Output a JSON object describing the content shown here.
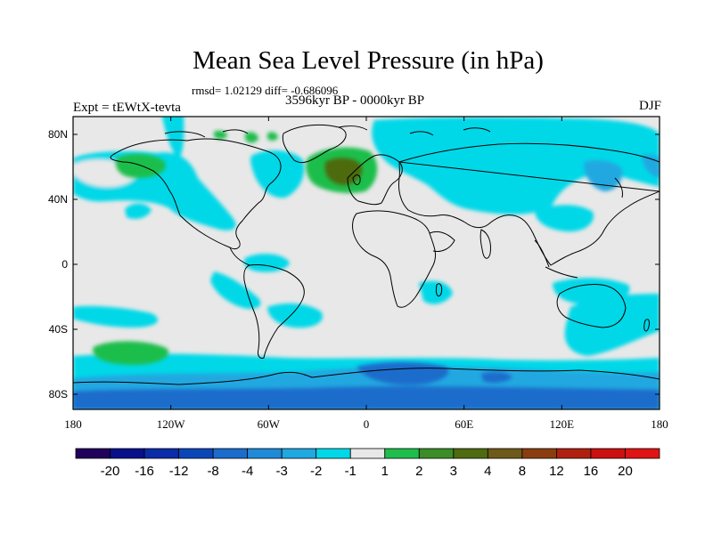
{
  "header": {
    "title": "Mean Sea Level Pressure (in hPa)",
    "stats": "rmsd= 1.02129 diff= -0.686096",
    "period": "3596kyr BP - 0000kyr BP",
    "experiment": "Expt = tEWtX-tevta",
    "season": "DJF"
  },
  "axes": {
    "lat_ticks": [
      "80N",
      "40N",
      "0",
      "40S",
      "80S"
    ],
    "lon_ticks": [
      "180",
      "120W",
      "60W",
      "0",
      "60E",
      "120E",
      "180"
    ]
  },
  "colorbar": {
    "labels": [
      "-20",
      "-16",
      "-12",
      "-8",
      "-4",
      "-3",
      "-2",
      "-1",
      "1",
      "2",
      "3",
      "4",
      "8",
      "12",
      "16",
      "20"
    ],
    "colors": [
      "#20005a",
      "#08108a",
      "#0a2ca8",
      "#0a46b8",
      "#1b6ccc",
      "#1f8ad8",
      "#20a8e0",
      "#00d8e8",
      "#e8e8e8",
      "#1fbe4c",
      "#3c8c28",
      "#4e6b10",
      "#6e5a18",
      "#8a3e10",
      "#b02010",
      "#cc1010",
      "#e01414"
    ]
  },
  "map": {
    "background_color": "#e8e8e8",
    "negative_light_color": "#00d8e8",
    "negative_mid_color": "#20a8e0",
    "negative_dark_color": "#1b6ccc",
    "positive_light_color": "#1fbe4c",
    "positive_dark_color": "#4e6b10"
  }
}
